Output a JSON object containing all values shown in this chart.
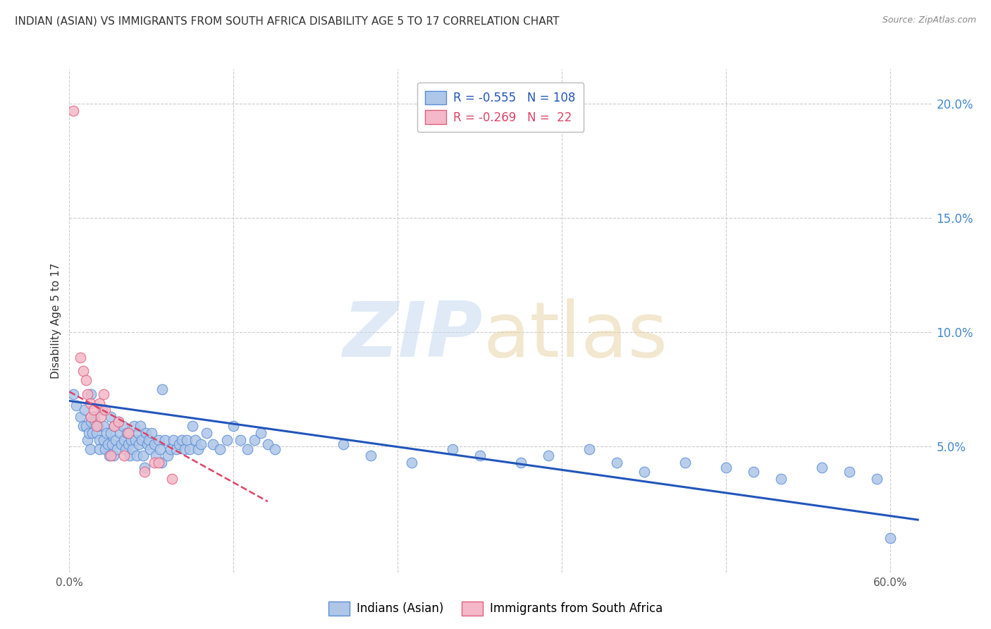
{
  "title": "INDIAN (ASIAN) VS IMMIGRANTS FROM SOUTH AFRICA DISABILITY AGE 5 TO 17 CORRELATION CHART",
  "source": "Source: ZipAtlas.com",
  "ylabel": "Disability Age 5 to 17",
  "watermark_zip": "ZIP",
  "watermark_atlas": "atlas",
  "legend_blue_r": "R = -0.555",
  "legend_blue_n": "N = 108",
  "legend_pink_r": "R = -0.269",
  "legend_pink_n": "N =  22",
  "bottom_legend": [
    "Indians (Asian)",
    "Immigrants from South Africa"
  ],
  "xlim": [
    0.0,
    0.63
  ],
  "ylim": [
    -0.005,
    0.215
  ],
  "yticks": [
    0.05,
    0.1,
    0.15,
    0.2
  ],
  "ytick_labels": [
    "5.0%",
    "10.0%",
    "15.0%",
    "20.0%"
  ],
  "xticks": [
    0.0,
    0.12,
    0.24,
    0.36,
    0.48,
    0.6
  ],
  "xtick_labels": [
    "0.0%",
    "",
    "",
    "",
    "",
    "60.0%"
  ],
  "blue_color": "#aec6e8",
  "pink_color": "#f4b8c8",
  "blue_edge_color": "#5b8ed6",
  "pink_edge_color": "#e06080",
  "blue_line_color": "#2255bb",
  "pink_line_color": "#dd4466",
  "grid_color": "#cccccc",
  "background_color": "#ffffff",
  "title_color": "#333333",
  "right_axis_color": "#4488cc",
  "blue_scatter": [
    [
      0.003,
      0.073
    ],
    [
      0.005,
      0.068
    ],
    [
      0.008,
      0.063
    ],
    [
      0.01,
      0.059
    ],
    [
      0.011,
      0.066
    ],
    [
      0.012,
      0.059
    ],
    [
      0.013,
      0.053
    ],
    [
      0.014,
      0.056
    ],
    [
      0.015,
      0.049
    ],
    [
      0.016,
      0.073
    ],
    [
      0.016,
      0.061
    ],
    [
      0.017,
      0.056
    ],
    [
      0.018,
      0.063
    ],
    [
      0.019,
      0.061
    ],
    [
      0.02,
      0.056
    ],
    [
      0.021,
      0.059
    ],
    [
      0.022,
      0.053
    ],
    [
      0.022,
      0.049
    ],
    [
      0.024,
      0.066
    ],
    [
      0.025,
      0.059
    ],
    [
      0.025,
      0.053
    ],
    [
      0.026,
      0.049
    ],
    [
      0.027,
      0.056
    ],
    [
      0.028,
      0.051
    ],
    [
      0.029,
      0.046
    ],
    [
      0.03,
      0.063
    ],
    [
      0.03,
      0.056
    ],
    [
      0.031,
      0.051
    ],
    [
      0.032,
      0.046
    ],
    [
      0.033,
      0.059
    ],
    [
      0.034,
      0.053
    ],
    [
      0.035,
      0.049
    ],
    [
      0.036,
      0.061
    ],
    [
      0.037,
      0.056
    ],
    [
      0.038,
      0.051
    ],
    [
      0.039,
      0.059
    ],
    [
      0.04,
      0.053
    ],
    [
      0.041,
      0.049
    ],
    [
      0.042,
      0.056
    ],
    [
      0.043,
      0.051
    ],
    [
      0.044,
      0.046
    ],
    [
      0.045,
      0.053
    ],
    [
      0.046,
      0.049
    ],
    [
      0.047,
      0.059
    ],
    [
      0.048,
      0.053
    ],
    [
      0.049,
      0.046
    ],
    [
      0.05,
      0.056
    ],
    [
      0.051,
      0.051
    ],
    [
      0.052,
      0.059
    ],
    [
      0.053,
      0.053
    ],
    [
      0.054,
      0.046
    ],
    [
      0.055,
      0.041
    ],
    [
      0.056,
      0.056
    ],
    [
      0.057,
      0.051
    ],
    [
      0.058,
      0.053
    ],
    [
      0.059,
      0.049
    ],
    [
      0.06,
      0.056
    ],
    [
      0.062,
      0.051
    ],
    [
      0.063,
      0.046
    ],
    [
      0.065,
      0.053
    ],
    [
      0.066,
      0.049
    ],
    [
      0.067,
      0.043
    ],
    [
      0.068,
      0.075
    ],
    [
      0.07,
      0.053
    ],
    [
      0.072,
      0.046
    ],
    [
      0.074,
      0.049
    ],
    [
      0.076,
      0.053
    ],
    [
      0.078,
      0.049
    ],
    [
      0.08,
      0.051
    ],
    [
      0.082,
      0.053
    ],
    [
      0.084,
      0.049
    ],
    [
      0.086,
      0.053
    ],
    [
      0.088,
      0.049
    ],
    [
      0.09,
      0.059
    ],
    [
      0.092,
      0.053
    ],
    [
      0.094,
      0.049
    ],
    [
      0.096,
      0.051
    ],
    [
      0.1,
      0.056
    ],
    [
      0.105,
      0.051
    ],
    [
      0.11,
      0.049
    ],
    [
      0.115,
      0.053
    ],
    [
      0.12,
      0.059
    ],
    [
      0.125,
      0.053
    ],
    [
      0.13,
      0.049
    ],
    [
      0.135,
      0.053
    ],
    [
      0.14,
      0.056
    ],
    [
      0.145,
      0.051
    ],
    [
      0.15,
      0.049
    ],
    [
      0.2,
      0.051
    ],
    [
      0.22,
      0.046
    ],
    [
      0.25,
      0.043
    ],
    [
      0.28,
      0.049
    ],
    [
      0.3,
      0.046
    ],
    [
      0.33,
      0.043
    ],
    [
      0.35,
      0.046
    ],
    [
      0.38,
      0.049
    ],
    [
      0.4,
      0.043
    ],
    [
      0.42,
      0.039
    ],
    [
      0.45,
      0.043
    ],
    [
      0.48,
      0.041
    ],
    [
      0.5,
      0.039
    ],
    [
      0.52,
      0.036
    ],
    [
      0.55,
      0.041
    ],
    [
      0.57,
      0.039
    ],
    [
      0.59,
      0.036
    ],
    [
      0.6,
      0.01
    ]
  ],
  "pink_scatter": [
    [
      0.003,
      0.197
    ],
    [
      0.008,
      0.089
    ],
    [
      0.01,
      0.083
    ],
    [
      0.012,
      0.079
    ],
    [
      0.013,
      0.073
    ],
    [
      0.015,
      0.069
    ],
    [
      0.016,
      0.063
    ],
    [
      0.018,
      0.066
    ],
    [
      0.02,
      0.059
    ],
    [
      0.022,
      0.069
    ],
    [
      0.023,
      0.063
    ],
    [
      0.025,
      0.073
    ],
    [
      0.026,
      0.066
    ],
    [
      0.03,
      0.046
    ],
    [
      0.033,
      0.059
    ],
    [
      0.036,
      0.061
    ],
    [
      0.04,
      0.046
    ],
    [
      0.043,
      0.056
    ],
    [
      0.055,
      0.039
    ],
    [
      0.062,
      0.043
    ],
    [
      0.065,
      0.043
    ],
    [
      0.075,
      0.036
    ]
  ],
  "blue_trendline_x": [
    0.0,
    0.62
  ],
  "blue_trendline_y": [
    0.07,
    0.018
  ],
  "pink_trendline_x": [
    0.0,
    0.145
  ],
  "pink_trendline_y": [
    0.074,
    0.026
  ]
}
